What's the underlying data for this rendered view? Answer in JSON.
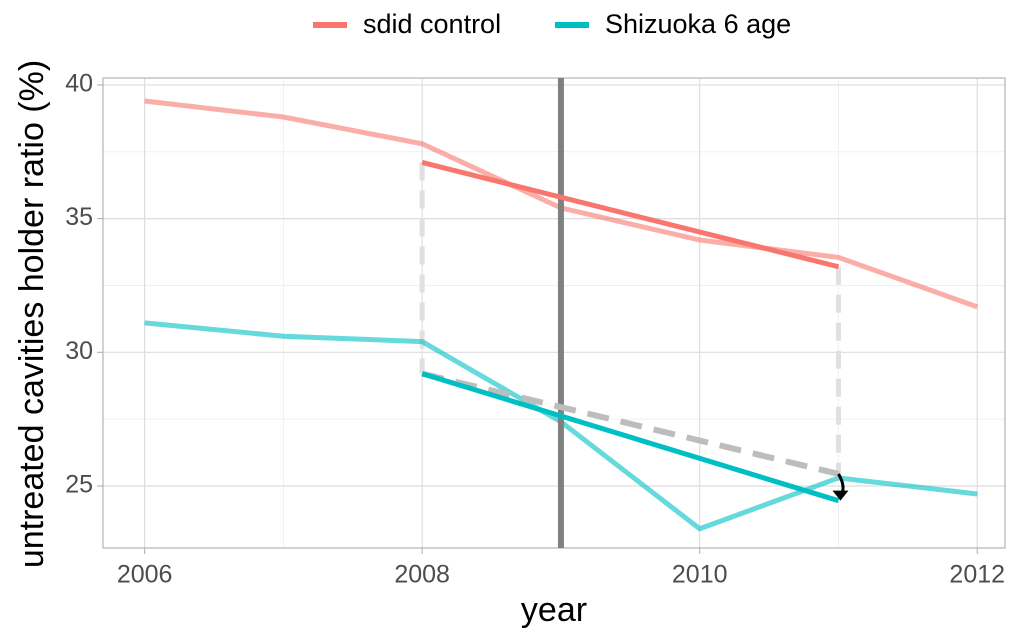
{
  "chart_data": {
    "type": "line",
    "xlabel": "year",
    "ylabel": "untreated cavities holder ratio (%)",
    "x": [
      2006,
      2007,
      2008,
      2009,
      2010,
      2011,
      2012
    ],
    "series": [
      {
        "name": "sdid control",
        "color": "#F8766D",
        "values": [
          39.4,
          38.8,
          37.8,
          35.4,
          34.2,
          33.55,
          31.7
        ]
      },
      {
        "name": "Shizuoka 6 age",
        "color": "#00BFC4",
        "values": [
          31.1,
          30.6,
          30.4,
          27.4,
          23.4,
          25.3,
          24.7
        ]
      }
    ],
    "trends": [
      {
        "color": "#F8766D",
        "x": [
          2008,
          2011
        ],
        "values": [
          37.1,
          33.2
        ]
      },
      {
        "color": "#00BFC4",
        "x": [
          2008,
          2011
        ],
        "values": [
          29.2,
          24.45
        ]
      }
    ],
    "counterfactual": {
      "color": "#bdbdbd",
      "x": [
        2008,
        2011
      ],
      "values": [
        29.2,
        25.45
      ]
    },
    "intervention_x": 2009,
    "xlim": [
      2005.7,
      2012.2
    ],
    "ylim": [
      22.68,
      40.26
    ],
    "xticks": [
      2006,
      2008,
      2010,
      2012
    ],
    "yticks": [
      25,
      30,
      35,
      40
    ],
    "minor_xticks": [
      2007,
      2009,
      2011
    ],
    "minor_yticks": [
      27.5,
      32.5,
      37.5
    ],
    "grid": true,
    "legend": "top"
  }
}
